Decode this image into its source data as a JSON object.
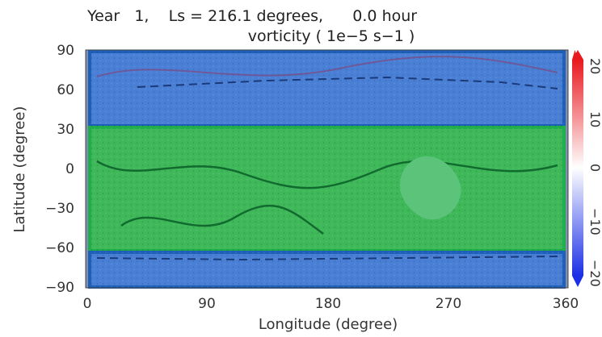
{
  "chart_data": {
    "type": "heatmap",
    "title_line1": "Year   1,    Ls = 216.1 degrees,      0.0 hour",
    "title_line2": "vorticity ( 1e−5 s−1 )",
    "xlabel": "Longitude (degree)",
    "ylabel": "Latitude (degree)",
    "x_ticks": [
      "0",
      "90",
      "180",
      "270",
      "360"
    ],
    "y_ticks": [
      "90",
      "60",
      "30",
      "0",
      "−30",
      "−60",
      "−90"
    ],
    "xlim": [
      0,
      360
    ],
    "ylim": [
      -90,
      90
    ],
    "colorbar": {
      "ticks": [
        "20",
        "10",
        "0",
        "−10",
        "−20"
      ],
      "range": [
        -20,
        20
      ],
      "colors": {
        "max": "#e8191f",
        "mid": "#ffffff",
        "min": "#1a2fe6"
      }
    },
    "regions": [
      {
        "name": "north band",
        "lat_range": [
          32,
          90
        ],
        "color": "#2a6fd0"
      },
      {
        "name": "middle band",
        "lat_range": [
          -60,
          32
        ],
        "color": "#22b04a"
      },
      {
        "name": "south band",
        "lat_range": [
          -90,
          -60
        ],
        "color": "#2a6fd0"
      }
    ]
  }
}
